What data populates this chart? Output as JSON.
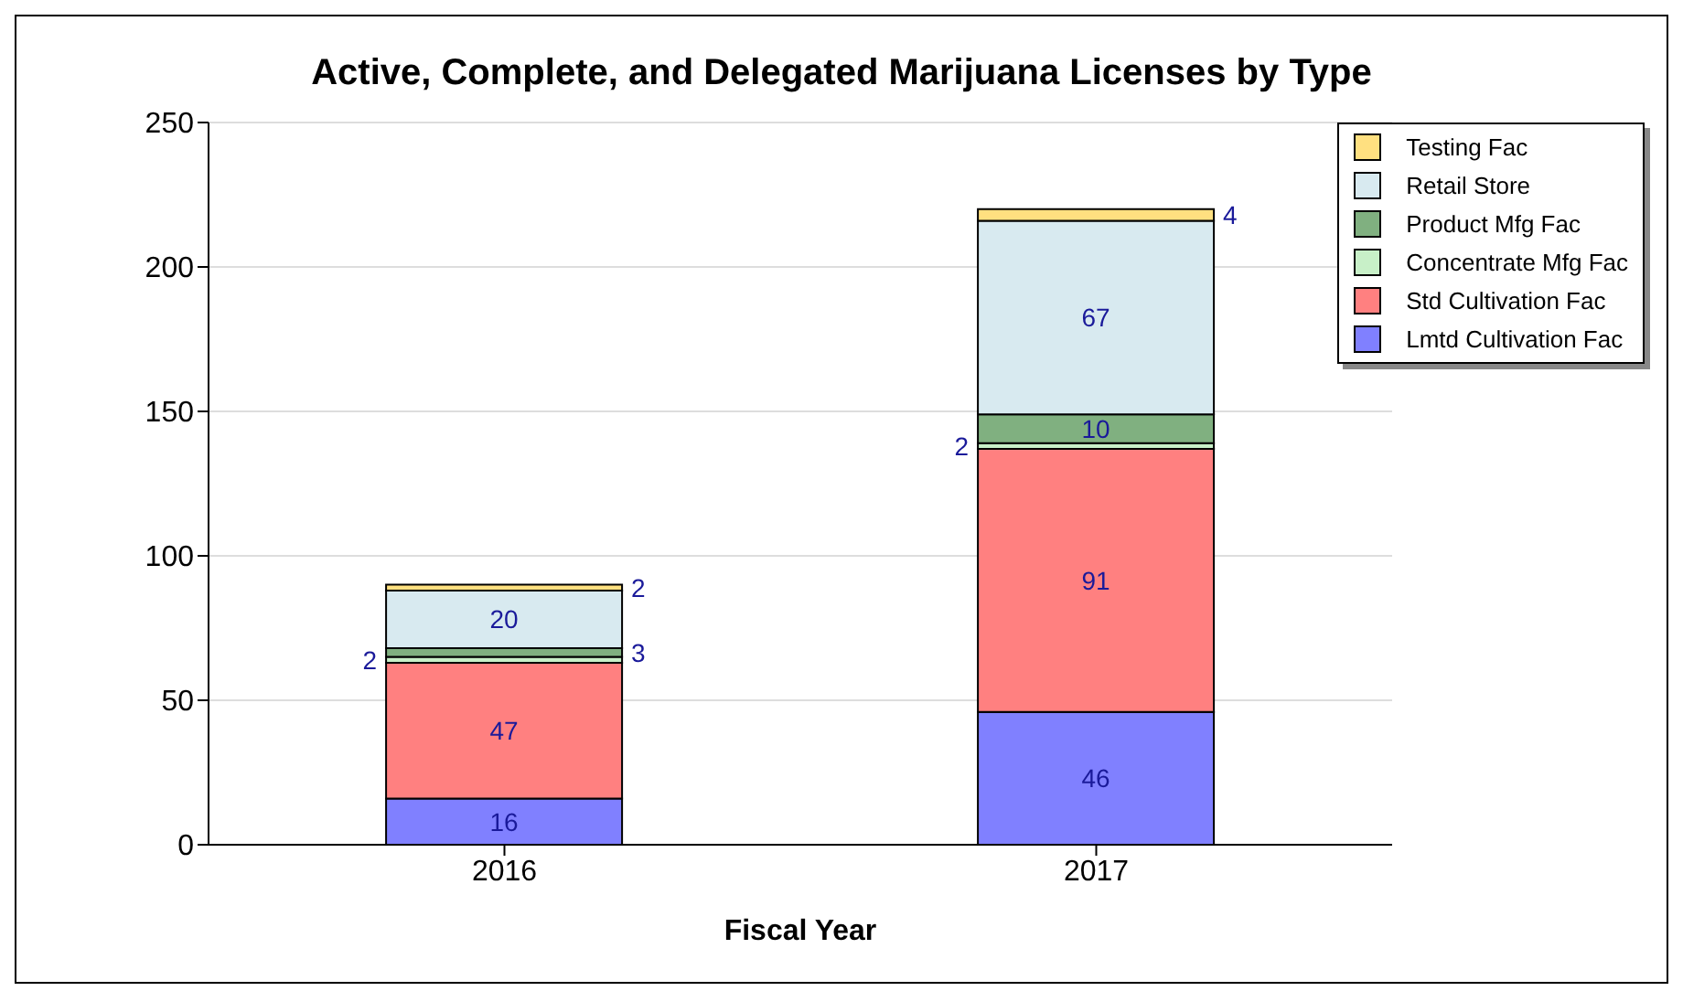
{
  "chart_data": {
    "type": "bar",
    "title": "Active, Complete, and Delegated Marijuana Licenses by Type",
    "xlabel": "Fiscal Year",
    "categories": [
      "2016",
      "2017"
    ],
    "stacked": true,
    "data_labels": true,
    "grid": "y",
    "legend": "top right",
    "ylim": [
      0,
      250
    ],
    "yticks": [
      0,
      50,
      100,
      150,
      200,
      250
    ],
    "series": [
      {
        "name": "Lmtd Cultivation Fac",
        "color": "#8080ff",
        "values": [
          16,
          46
        ]
      },
      {
        "name": "Std Cultivation Fac",
        "color": "#ff8080",
        "values": [
          47,
          91
        ]
      },
      {
        "name": "Concentrate Mfg Fac",
        "color": "#c8f0c8",
        "values": [
          2,
          2
        ]
      },
      {
        "name": "Product Mfg Fac",
        "color": "#80b080",
        "values": [
          3,
          10
        ]
      },
      {
        "name": "Retail Store",
        "color": "#d8eaf0",
        "values": [
          20,
          67
        ]
      },
      {
        "name": "Testing Fac",
        "color": "#ffe080",
        "values": [
          2,
          4
        ]
      }
    ]
  }
}
